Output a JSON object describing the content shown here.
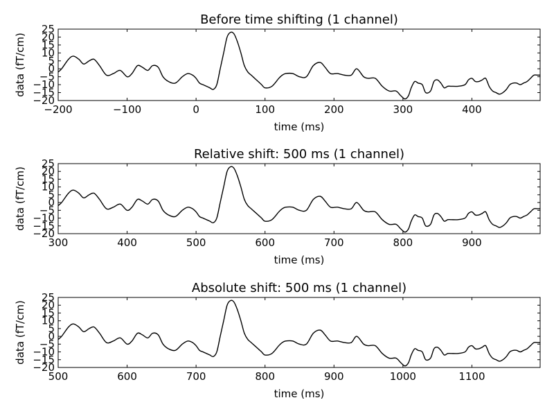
{
  "chart_data": [
    {
      "type": "line",
      "title": "Before time shifting (1 channel)",
      "xlabel": "time (ms)",
      "ylabel": "data (fT/cm)",
      "xlim": [
        -200,
        499
      ],
      "ylim": [
        -20,
        25
      ],
      "xticks": [
        -200,
        -100,
        0,
        100,
        200,
        300,
        400
      ],
      "xtick_labels": [
        "−200",
        "−100",
        "0",
        "100",
        "200",
        "300",
        "400"
      ],
      "yticks": [
        25,
        20,
        15,
        10,
        5,
        0,
        -5,
        -10,
        -15,
        -20
      ],
      "ytick_labels": [
        "25",
        "20",
        "15",
        "10",
        "5",
        "0",
        "−5",
        "−10",
        "−15",
        "−20"
      ],
      "grid": false,
      "series": [
        {
          "x": [
            -200,
            -195,
            -185,
            -178,
            -170,
            -163,
            -155,
            -148,
            -140,
            -130,
            -120,
            -110,
            -100,
            -93,
            -85,
            -78,
            -70,
            -63,
            -55,
            -48,
            -40,
            -30,
            -20,
            -12,
            -5,
            0,
            5,
            10,
            15,
            20,
            25,
            30,
            35,
            40,
            45,
            50,
            55,
            60,
            65,
            70,
            75,
            80,
            85,
            90,
            95,
            100,
            110,
            120,
            125,
            130,
            140,
            150,
            160,
            170,
            180,
            187,
            195,
            205,
            215,
            225,
            233,
            243,
            250,
            260,
            270,
            280,
            290,
            297,
            303,
            308,
            312,
            317,
            322,
            328,
            333,
            340,
            345,
            350,
            355,
            360,
            365,
            370,
            380,
            390,
            395,
            400,
            405,
            410,
            415,
            420,
            425,
            430,
            435,
            440,
            445,
            450,
            455,
            460,
            465,
            470,
            475,
            480,
            485,
            490,
            495,
            499
          ],
          "y": [
            -2,
            0,
            6,
            8,
            6,
            3,
            5,
            6,
            2,
            -4,
            -3,
            -1,
            -5,
            -3,
            2,
            1,
            -1,
            2,
            1,
            -5,
            -8,
            -9,
            -5,
            -3,
            -4,
            -6,
            -9,
            -10,
            -11,
            -12,
            -13,
            -10,
            0,
            10,
            20,
            23,
            22,
            17,
            10,
            2,
            -2,
            -4,
            -6,
            -8,
            -10,
            -12,
            -11,
            -6,
            -4,
            -3,
            -3,
            -5,
            -5,
            2,
            4,
            1,
            -3,
            -3,
            -4,
            -4,
            0,
            -5,
            -6,
            -6,
            -11,
            -14,
            -14,
            -17,
            -19,
            -17,
            -12,
            -8,
            -9,
            -10,
            -15,
            -14,
            -8,
            -7,
            -9,
            -12,
            -11,
            -11,
            -11,
            -10,
            -7,
            -6,
            -8,
            -8,
            -7,
            -6,
            -11,
            -14,
            -15,
            -16,
            -15,
            -13,
            -10,
            -9,
            -9,
            -10,
            -9,
            -8,
            -6,
            -4,
            -4,
            -4
          ]
        }
      ]
    },
    {
      "type": "line",
      "title": "Relative shift: 500 ms (1 channel)",
      "xlabel": "time (ms)",
      "ylabel": "data (fT/cm)",
      "xlim": [
        300,
        999
      ],
      "ylim": [
        -20,
        25
      ],
      "xticks": [
        300,
        400,
        500,
        600,
        700,
        800,
        900
      ],
      "xtick_labels": [
        "300",
        "400",
        "500",
        "600",
        "700",
        "800",
        "900"
      ],
      "yticks": [
        25,
        20,
        15,
        10,
        5,
        0,
        -5,
        -10,
        -15,
        -20
      ],
      "ytick_labels": [
        "25",
        "20",
        "15",
        "10",
        "5",
        "0",
        "−5",
        "−10",
        "−15",
        "−20"
      ],
      "grid": false,
      "series": [
        {
          "x": [
            300,
            305,
            315,
            322,
            330,
            337,
            345,
            352,
            360,
            370,
            380,
            390,
            400,
            407,
            415,
            422,
            430,
            437,
            445,
            452,
            460,
            470,
            480,
            488,
            495,
            500,
            505,
            510,
            515,
            520,
            525,
            530,
            535,
            540,
            545,
            550,
            555,
            560,
            565,
            570,
            575,
            580,
            585,
            590,
            595,
            600,
            610,
            620,
            625,
            630,
            640,
            650,
            660,
            670,
            680,
            687,
            695,
            705,
            715,
            725,
            733,
            743,
            750,
            760,
            770,
            780,
            790,
            797,
            803,
            808,
            812,
            817,
            822,
            828,
            833,
            840,
            845,
            850,
            855,
            860,
            865,
            870,
            880,
            890,
            895,
            900,
            905,
            910,
            915,
            920,
            925,
            930,
            935,
            940,
            945,
            950,
            955,
            960,
            965,
            970,
            975,
            980,
            985,
            990,
            995,
            999
          ],
          "y": [
            -2,
            0,
            6,
            8,
            6,
            3,
            5,
            6,
            2,
            -4,
            -3,
            -1,
            -5,
            -3,
            2,
            1,
            -1,
            2,
            1,
            -5,
            -8,
            -9,
            -5,
            -3,
            -4,
            -6,
            -9,
            -10,
            -11,
            -12,
            -13,
            -10,
            0,
            10,
            20,
            23,
            22,
            17,
            10,
            2,
            -2,
            -4,
            -6,
            -8,
            -10,
            -12,
            -11,
            -6,
            -4,
            -3,
            -3,
            -5,
            -5,
            2,
            4,
            1,
            -3,
            -3,
            -4,
            -4,
            0,
            -5,
            -6,
            -6,
            -11,
            -14,
            -14,
            -17,
            -19,
            -17,
            -12,
            -8,
            -9,
            -10,
            -15,
            -14,
            -8,
            -7,
            -9,
            -12,
            -11,
            -11,
            -11,
            -10,
            -7,
            -6,
            -8,
            -8,
            -7,
            -6,
            -11,
            -14,
            -15,
            -16,
            -15,
            -13,
            -10,
            -9,
            -9,
            -10,
            -9,
            -8,
            -6,
            -4,
            -4,
            -4
          ]
        }
      ]
    },
    {
      "type": "line",
      "title": "Absolute shift: 500 ms (1 channel)",
      "xlabel": "time (ms)",
      "ylabel": "data (fT/cm)",
      "xlim": [
        500,
        1199
      ],
      "ylim": [
        -20,
        25
      ],
      "xticks": [
        500,
        600,
        700,
        800,
        900,
        1000,
        1100
      ],
      "xtick_labels": [
        "500",
        "600",
        "700",
        "800",
        "900",
        "1000",
        "1100"
      ],
      "yticks": [
        25,
        20,
        15,
        10,
        5,
        0,
        -5,
        -10,
        -15,
        -20
      ],
      "ytick_labels": [
        "25",
        "20",
        "15",
        "10",
        "5",
        "0",
        "−5",
        "−10",
        "−15",
        "−20"
      ],
      "grid": false,
      "series": [
        {
          "x": [
            500,
            505,
            515,
            522,
            530,
            537,
            545,
            552,
            560,
            570,
            580,
            590,
            600,
            607,
            615,
            622,
            630,
            637,
            645,
            652,
            660,
            670,
            680,
            688,
            695,
            700,
            705,
            710,
            715,
            720,
            725,
            730,
            735,
            740,
            745,
            750,
            755,
            760,
            765,
            770,
            775,
            780,
            785,
            790,
            795,
            800,
            810,
            820,
            825,
            830,
            840,
            850,
            860,
            870,
            880,
            887,
            895,
            905,
            915,
            925,
            933,
            943,
            950,
            960,
            970,
            980,
            990,
            997,
            1003,
            1008,
            1012,
            1017,
            1022,
            1028,
            1033,
            1040,
            1045,
            1050,
            1055,
            1060,
            1065,
            1070,
            1080,
            1090,
            1095,
            1100,
            1105,
            1110,
            1115,
            1120,
            1125,
            1130,
            1135,
            1140,
            1145,
            1150,
            1155,
            1160,
            1165,
            1170,
            1175,
            1180,
            1185,
            1190,
            1195,
            1199
          ],
          "y": [
            -2,
            0,
            6,
            8,
            6,
            3,
            5,
            6,
            2,
            -4,
            -3,
            -1,
            -5,
            -3,
            2,
            1,
            -1,
            2,
            1,
            -5,
            -8,
            -9,
            -5,
            -3,
            -4,
            -6,
            -9,
            -10,
            -11,
            -12,
            -13,
            -10,
            0,
            10,
            20,
            23,
            22,
            17,
            10,
            2,
            -2,
            -4,
            -6,
            -8,
            -10,
            -12,
            -11,
            -6,
            -4,
            -3,
            -3,
            -5,
            -5,
            2,
            4,
            1,
            -3,
            -3,
            -4,
            -4,
            0,
            -5,
            -6,
            -6,
            -11,
            -14,
            -14,
            -17,
            -19,
            -17,
            -12,
            -8,
            -9,
            -10,
            -15,
            -14,
            -8,
            -7,
            -9,
            -12,
            -11,
            -11,
            -11,
            -10,
            -7,
            -6,
            -8,
            -8,
            -7,
            -6,
            -11,
            -14,
            -15,
            -16,
            -15,
            -13,
            -10,
            -9,
            -9,
            -10,
            -9,
            -8,
            -6,
            -4,
            -4,
            -4
          ]
        }
      ]
    }
  ]
}
